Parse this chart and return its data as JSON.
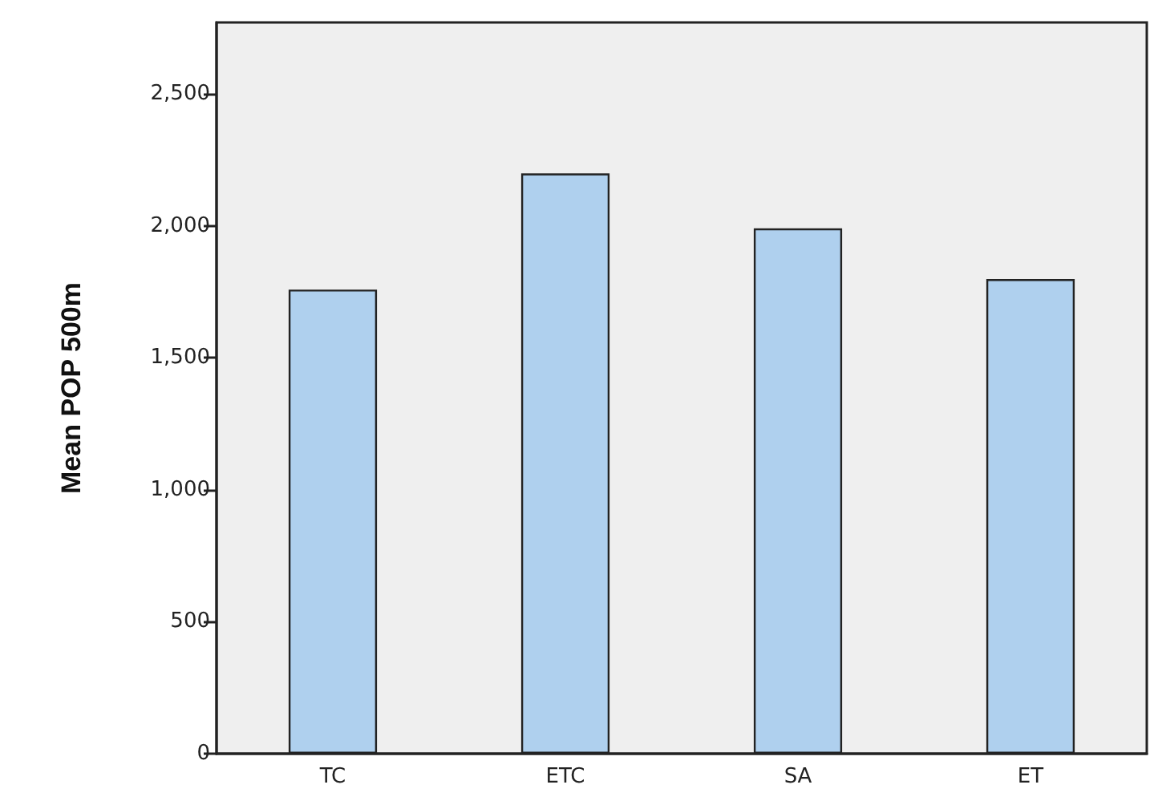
{
  "chart_data": {
    "type": "bar",
    "ylabel": "Mean POP 500m",
    "categories": [
      "TC",
      "ETC",
      "SA",
      "ET"
    ],
    "values": [
      1758,
      2198,
      1990,
      1798
    ],
    "color": "#afd0ee",
    "ylim": [
      0,
      2770
    ],
    "yticks": [
      0,
      500,
      {
        "value": 1000,
        "label": "1,000"
      },
      {
        "value": 1500,
        "label": "1,500"
      },
      {
        "value": 2000,
        "label": "2,000"
      },
      {
        "value": 2500,
        "label": "2,500"
      }
    ],
    "grid": false
  }
}
